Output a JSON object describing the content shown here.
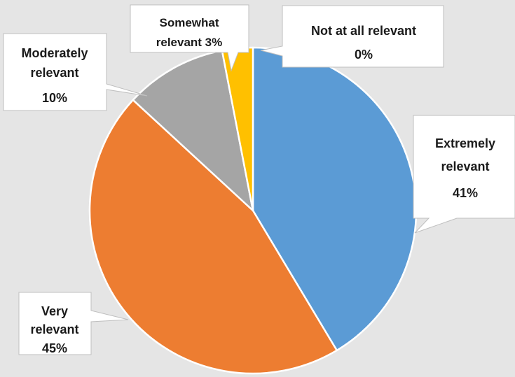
{
  "chart_data": {
    "type": "pie",
    "title": "",
    "slices": [
      {
        "label": "Extremely relevant",
        "value": 41,
        "display": [
          "Extremely",
          "relevant",
          "41%"
        ],
        "color": "#5b9bd5"
      },
      {
        "label": "Very relevant",
        "value": 45,
        "display": [
          "Very",
          "relevant",
          "45%"
        ],
        "color": "#ed7d31"
      },
      {
        "label": "Moderately relevant",
        "value": 10,
        "display": [
          "Moderately",
          "relevant",
          "10%"
        ],
        "color": "#a5a5a5"
      },
      {
        "label": "Somewhat relevant",
        "value": 3,
        "display": [
          "Somewhat",
          "relevant 3%"
        ],
        "color": "#ffc000"
      },
      {
        "label": "Not at all relevant",
        "value": 0,
        "display": [
          "Not at all relevant",
          "0%"
        ],
        "color": "#4472c4"
      }
    ],
    "legend": "none",
    "data_labels": "callouts"
  },
  "colors": {
    "background": "#e5e5e5",
    "slice_border": "#ffffff",
    "callout_fill": "#ffffff",
    "callout_border": "#bfbfbf",
    "text": "#1a1a1a"
  }
}
